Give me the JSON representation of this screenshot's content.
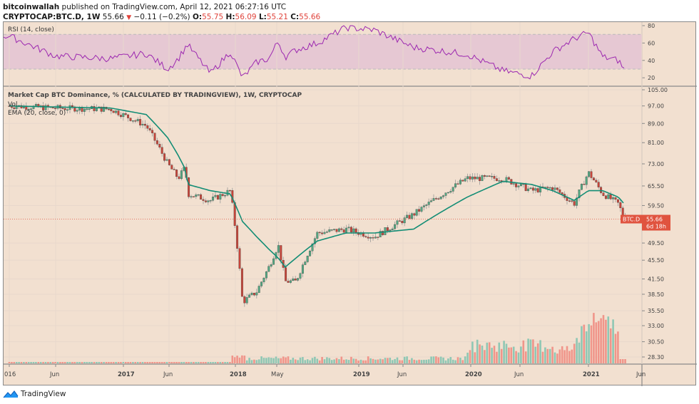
{
  "header": {
    "author": "bitcoinwallah",
    "published_text": "published on TradingView.com, April 12, 2021 06:27:16 UTC",
    "symbol": "CRYPTOCAP:BTC.D, 1W",
    "last": "55.66",
    "change_icon": "down-triangle-icon",
    "change": "−0.11 (−0.2%)",
    "o_label": "O:",
    "o": "55.75",
    "h_label": "H:",
    "h": "56.09",
    "l_label": "L:",
    "l": "55.21",
    "c_label": "C:",
    "c": "55.66"
  },
  "rsi_pane": {
    "label": "RSI (14, close)",
    "axis_ticks": [
      "80",
      "60",
      "40",
      "20"
    ],
    "upper_band": 70,
    "lower_band": 30,
    "line_color": "#9c27b0",
    "band_color": "#e6c8d3"
  },
  "price_pane": {
    "title": "Market Cap BTC Dominance, % (CALCULATED BY TRADINGVIEW), 1W, CRYPTOCAP",
    "vol_label": "Vol",
    "ema_label": "EMA (20, close, 0)",
    "axis_ticks": [
      "105.00",
      "97.00",
      "89.00",
      "81.00",
      "73.00",
      "65.50",
      "59.50",
      "49.50",
      "45.50",
      "41.50",
      "38.50",
      "35.50",
      "33.00",
      "30.50",
      "28.30"
    ],
    "price_tag_symbol": "BTC.D",
    "price_tag_value": "55.66",
    "price_tag_countdown": "6d 18h",
    "up_color": "#53a883",
    "down_color": "#c8453a",
    "ema_color": "#138d75",
    "tag_color": "#e0533f"
  },
  "time_axis": [
    "016",
    "Jun",
    "2017",
    "Jun",
    "2018",
    "May",
    "2019",
    "Jun",
    "2020",
    "Jun",
    "2021",
    "Jun"
  ],
  "footer": {
    "logo_icon": "tradingview-cloud-icon",
    "brand": "TradingView"
  },
  "chart_data": {
    "type": "candlestick",
    "title": "Market Cap BTC Dominance, % (CALCULATED BY TRADINGVIEW), 1W, CRYPTOCAP",
    "xlabel": "",
    "ylabel": "%",
    "x": [
      "2016-01",
      "2016-06",
      "2017-01",
      "2017-03",
      "2017-05",
      "2017-06",
      "2017-07",
      "2017-09",
      "2017-11",
      "2017-12",
      "2018-01",
      "2018-02",
      "2018-03",
      "2018-05",
      "2018-06",
      "2018-08",
      "2018-10",
      "2019-01",
      "2019-04",
      "2019-06",
      "2019-09",
      "2020-01",
      "2020-04",
      "2020-06",
      "2020-09",
      "2020-12",
      "2021-01",
      "2021-03",
      "2021-04"
    ],
    "close_approx": [
      97,
      96,
      95.5,
      88,
      73,
      68,
      72,
      63,
      61,
      64,
      37,
      39,
      44,
      49,
      41,
      41,
      52,
      53,
      51,
      57,
      68,
      68,
      64,
      65,
      60,
      70,
      63,
      60,
      55.66
    ],
    "ema20_approx": [
      97,
      96.5,
      96,
      93,
      83,
      76,
      71,
      66,
      64,
      63,
      55,
      51,
      48,
      46,
      44,
      46,
      50,
      52,
      52,
      53,
      62,
      67,
      66,
      64,
      61,
      64,
      64,
      62,
      60
    ],
    "rsi_approx": [
      68,
      45,
      42,
      48,
      30,
      42,
      55,
      58,
      25,
      50,
      20,
      38,
      42,
      62,
      44,
      52,
      60,
      78,
      75,
      55,
      47,
      28,
      22,
      50,
      65,
      72,
      44,
      40,
      30
    ],
    "volume_note": "Volume bars rise sharply in early 2021 (peak ~Feb 2021)",
    "ylim": [
      28.3,
      105
    ],
    "y_scale": "log",
    "last": 55.66
  }
}
